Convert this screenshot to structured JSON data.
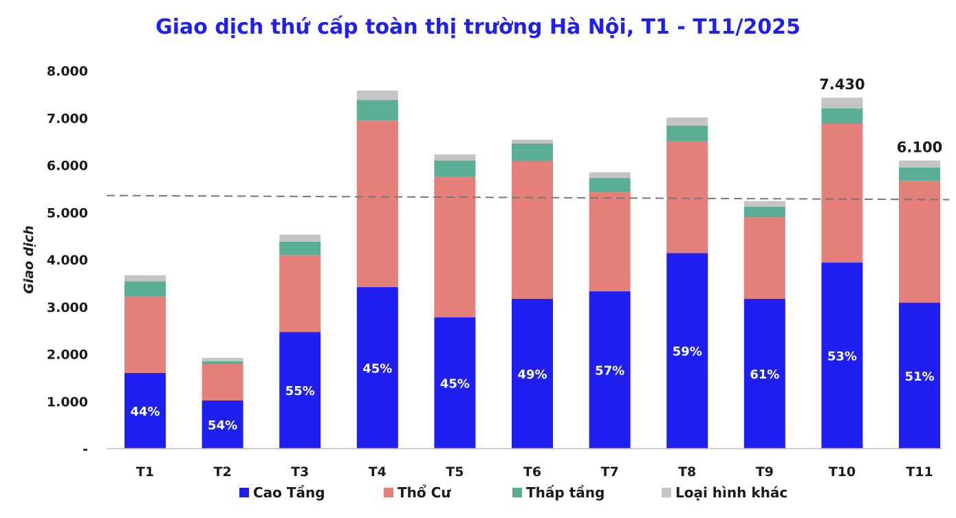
{
  "chart_data": {
    "type": "bar",
    "stacked": true,
    "title": "Giao dịch thứ cấp toàn thị trường Hà Nội, T1 - T11/2025",
    "ylabel": "Giao dịch",
    "xlabel": "",
    "categories": [
      "T1",
      "T2",
      "T3",
      "T4",
      "T5",
      "T6",
      "T7",
      "T8",
      "T9",
      "T10",
      "T11"
    ],
    "yticks": [
      "-",
      "1.000",
      "2.000",
      "3.000",
      "4.000",
      "5.000",
      "6.000",
      "7.000",
      "8.000"
    ],
    "ylim": [
      0,
      8000
    ],
    "reference_line": 5330,
    "series": [
      {
        "name": "Cao Tầng",
        "color": "#1f1ff0",
        "values": [
          1600,
          1020,
          2470,
          3420,
          2780,
          3170,
          3330,
          4140,
          3170,
          3940,
          3090
        ]
      },
      {
        "name": "Thổ Cư",
        "color": "#e57f7a",
        "values": [
          1620,
          770,
          1630,
          3530,
          2980,
          2920,
          2100,
          2360,
          1730,
          2940,
          2580
        ]
      },
      {
        "name": "Thấp tầng",
        "color": "#5aae96",
        "values": [
          320,
          60,
          280,
          430,
          340,
          370,
          300,
          340,
          220,
          320,
          280
        ]
      },
      {
        "name": "Loại hình khác",
        "color": "#c4c4c4",
        "values": [
          130,
          70,
          150,
          200,
          130,
          80,
          120,
          170,
          120,
          230,
          150
        ]
      }
    ],
    "percent_labels": [
      "44%",
      "54%",
      "55%",
      "45%",
      "45%",
      "49%",
      "57%",
      "59%",
      "61%",
      "53%",
      "51%"
    ],
    "total_labels": [
      {
        "index": 9,
        "text": "7.430"
      },
      {
        "index": 10,
        "text": "6.100"
      }
    ],
    "grid": false,
    "legend_position": "bottom"
  }
}
